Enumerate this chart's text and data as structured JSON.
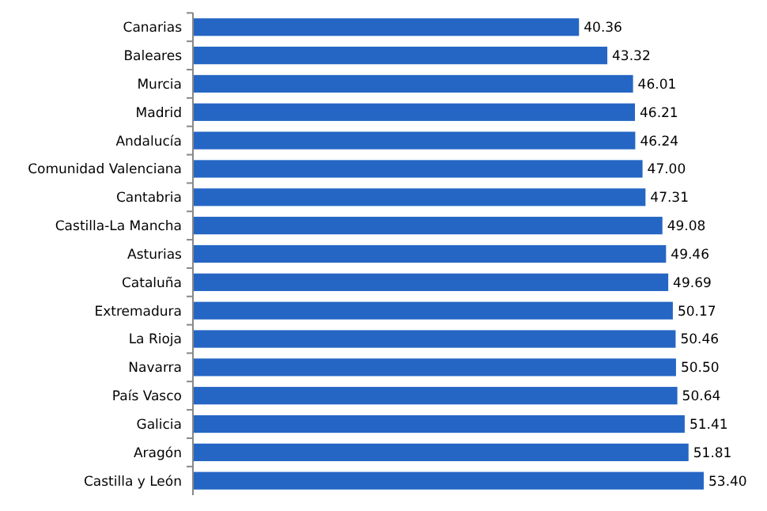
{
  "chart_data": {
    "type": "bar",
    "orientation": "horizontal",
    "categories": [
      "Canarias",
      "Baleares",
      "Murcia",
      "Madrid",
      "Andalucía",
      "Comunidad Valenciana",
      "Cantabria",
      "Castilla-La Mancha",
      "Asturias",
      "Cataluña",
      "Extremadura",
      "La Rioja",
      "Navarra",
      "País Vasco",
      "Galicia",
      "Aragón",
      "Castilla y León"
    ],
    "values": [
      40.36,
      43.32,
      46.01,
      46.21,
      46.24,
      47.0,
      47.31,
      49.08,
      49.46,
      49.69,
      50.17,
      50.46,
      50.5,
      50.64,
      51.41,
      51.81,
      53.4
    ],
    "value_labels": [
      "40.36",
      "43.32",
      "46.01",
      "46.21",
      "46.24",
      "47.00",
      "47.31",
      "49.08",
      "49.46",
      "49.69",
      "50.17",
      "50.46",
      "50.50",
      "50.64",
      "51.41",
      "51.81",
      "53.40"
    ],
    "color": "#2566c4"
  }
}
